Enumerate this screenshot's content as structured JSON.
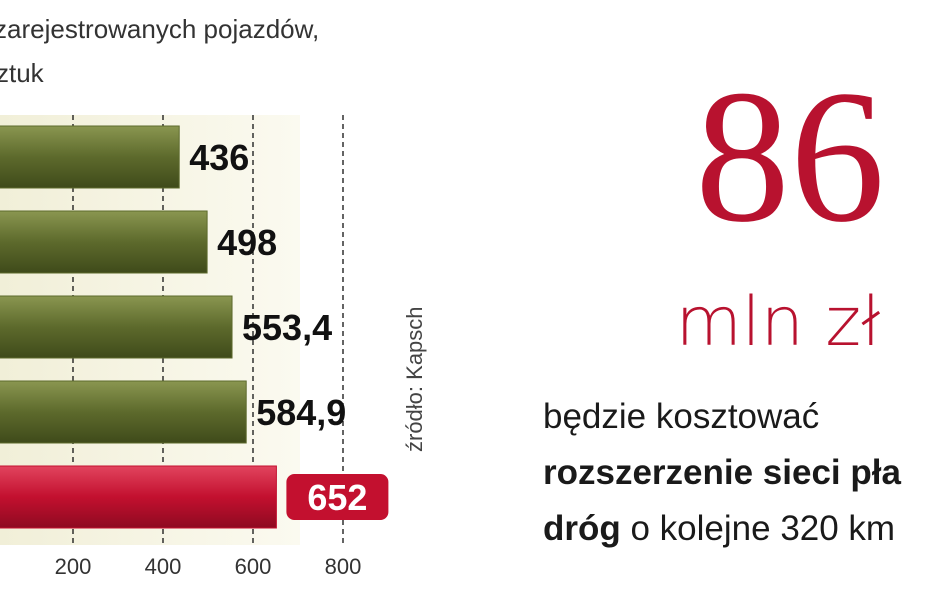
{
  "chart_data": {
    "type": "bar",
    "orientation": "horizontal",
    "title_lines": [
      "zarejestrowanych pojazdów,",
      "sztuk"
    ],
    "categories": [
      null,
      null,
      null,
      null,
      null
    ],
    "values": [
      436,
      498,
      553.4,
      584.9,
      652
    ],
    "value_labels": [
      "436",
      "498",
      "553,4",
      "584,9",
      "652"
    ],
    "colors": [
      "#5d6a2c",
      "#5d6a2c",
      "#5d6a2c",
      "#5d6a2c",
      "#c3102f"
    ],
    "highlight": [
      false,
      false,
      false,
      false,
      true
    ],
    "xlim": [
      0,
      800
    ],
    "xticks": [
      200,
      400,
      600,
      800
    ],
    "grid": true,
    "source": "źródło: Kapsch",
    "big_number": "86",
    "big_unit": "mln zł",
    "accent_color": "#b8122f",
    "text_lines": [
      [
        {
          "text": "będzie kosztować",
          "bold": false
        }
      ],
      [
        {
          "text": "rozszerzenie sieci pła",
          "bold": true
        }
      ],
      [
        {
          "text": "dróg",
          "bold": true
        },
        {
          "text": " o kolejne 320 km",
          "bold": false
        }
      ]
    ]
  }
}
